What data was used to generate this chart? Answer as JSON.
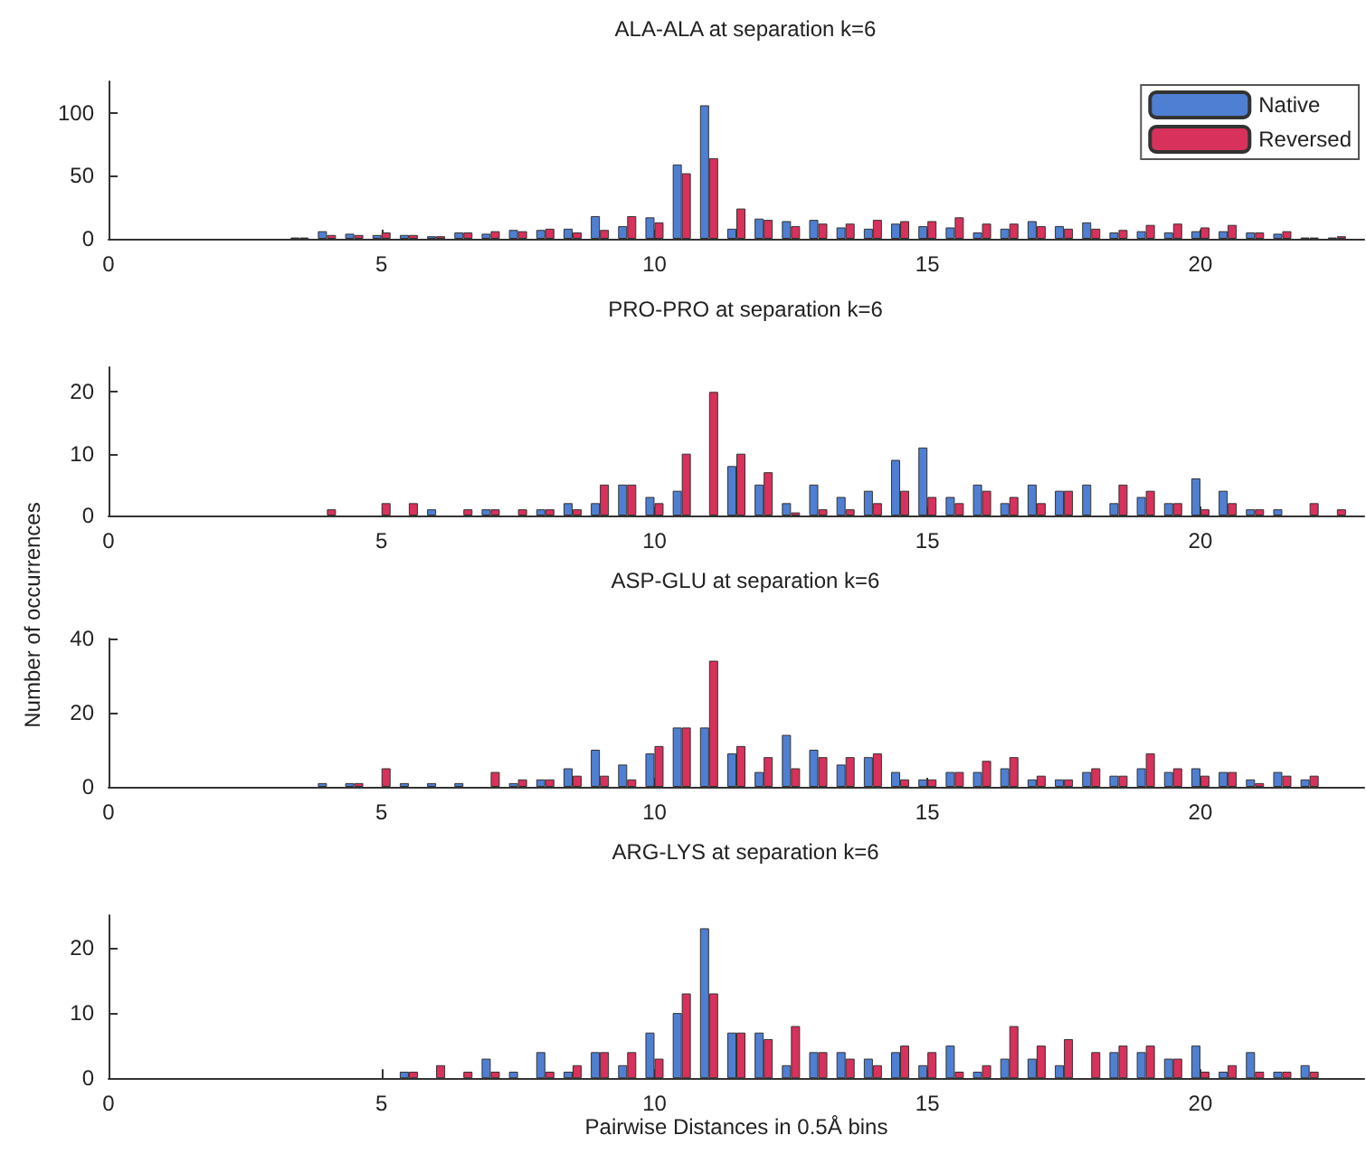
{
  "chart_data": [
    {
      "type": "bar",
      "title": "ALA-ALA at separation k=6",
      "x": [
        3.5,
        4,
        4.5,
        5,
        5.5,
        6,
        6.5,
        7,
        7.5,
        8,
        8.5,
        9,
        9.5,
        10,
        10.5,
        11,
        11.5,
        12,
        12.5,
        13,
        13.5,
        14,
        14.5,
        15,
        15.5,
        16,
        16.5,
        17,
        17.5,
        18,
        18.5,
        19,
        19.5,
        20,
        20.5,
        21,
        21.5,
        22,
        22.5
      ],
      "xlim": [
        0,
        23
      ],
      "xticks": [
        0,
        5,
        10,
        15,
        20
      ],
      "ylim": [
        0,
        125
      ],
      "yticks": [
        0,
        50,
        100
      ],
      "legend": "top right",
      "series": [
        {
          "name": "Native",
          "color": "#4f7fd2",
          "values": [
            1,
            6,
            4,
            3,
            3,
            2,
            5,
            4,
            7,
            7,
            8,
            18,
            10,
            17,
            59,
            106,
            8,
            16,
            14,
            15,
            9,
            8,
            12,
            10,
            9,
            5,
            8,
            14,
            10,
            13,
            5,
            6,
            5,
            6,
            6,
            5,
            4,
            1,
            1
          ]
        },
        {
          "name": "Reversed",
          "color": "#d8315b",
          "values": [
            1,
            3,
            3,
            5,
            3,
            2,
            5,
            6,
            6,
            8,
            5,
            7,
            18,
            13,
            52,
            64,
            24,
            15,
            10,
            12,
            12,
            15,
            14,
            14,
            17,
            12,
            12,
            10,
            8,
            8,
            7,
            11,
            12,
            9,
            11,
            5,
            6,
            1,
            2
          ]
        }
      ]
    },
    {
      "type": "bar",
      "title": "PRO-PRO at separation k=6",
      "x": [
        3.5,
        4,
        4.5,
        5,
        5.5,
        6,
        6.5,
        7,
        7.5,
        8,
        8.5,
        9,
        9.5,
        10,
        10.5,
        11,
        11.5,
        12,
        12.5,
        13,
        13.5,
        14,
        14.5,
        15,
        15.5,
        16,
        16.5,
        17,
        17.5,
        18,
        18.5,
        19,
        19.5,
        20,
        20.5,
        21,
        21.5,
        22,
        22.5
      ],
      "xlim": [
        0,
        23
      ],
      "xticks": [
        0,
        5,
        10,
        15,
        20
      ],
      "ylim": [
        0,
        24
      ],
      "yticks": [
        0,
        10,
        20
      ],
      "ylabel": "Number of occurrences",
      "series": [
        {
          "color": "#4f7fd2",
          "values": [
            0,
            0,
            0,
            0,
            0,
            1,
            0,
            1,
            0,
            1,
            2,
            2,
            5,
            3,
            4,
            0,
            8,
            5,
            2,
            5,
            3,
            4,
            9,
            11,
            3,
            5,
            2,
            5,
            4,
            5,
            2,
            3,
            2,
            6,
            4,
            1,
            1,
            0,
            0
          ]
        },
        {
          "color": "#d8315b",
          "values": [
            0,
            1,
            0,
            2,
            2,
            0,
            1,
            1,
            1,
            1,
            1,
            5,
            5,
            2,
            10,
            20,
            10,
            7,
            0.5,
            1,
            1,
            2,
            4,
            3,
            2,
            4,
            3,
            2,
            4,
            0,
            5,
            4,
            2,
            1,
            2,
            1,
            0,
            2,
            1
          ]
        }
      ]
    },
    {
      "type": "bar",
      "title": "ASP-GLU at separation k=6",
      "x": [
        3.5,
        4,
        4.5,
        5,
        5.5,
        6,
        6.5,
        7,
        7.5,
        8,
        8.5,
        9,
        9.5,
        10,
        10.5,
        11,
        11.5,
        12,
        12.5,
        13,
        13.5,
        14,
        14.5,
        15,
        15.5,
        16,
        16.5,
        17,
        17.5,
        18,
        18.5,
        19,
        19.5,
        20,
        20.5,
        21,
        21.5,
        22,
        22.5
      ],
      "xlim": [
        0,
        23
      ],
      "xticks": [
        0,
        5,
        10,
        15,
        20
      ],
      "ylim": [
        0,
        40
      ],
      "yticks": [
        0,
        20,
        40
      ],
      "series": [
        {
          "color": "#4f7fd2",
          "values": [
            0,
            1,
            1,
            0,
            1,
            1,
            1,
            0,
            1,
            2,
            5,
            10,
            6,
            9,
            16,
            16,
            9,
            4,
            14,
            10,
            6,
            8,
            4,
            2,
            4,
            4,
            5,
            2,
            2,
            4,
            3,
            5,
            4,
            5,
            4,
            2,
            4,
            2,
            0
          ]
        },
        {
          "color": "#d8315b",
          "values": [
            0,
            0,
            1,
            5,
            0,
            0,
            0,
            4,
            2,
            2,
            3,
            3,
            2,
            11,
            16,
            34,
            11,
            8,
            5,
            8,
            8,
            9,
            2,
            2,
            4,
            7,
            8,
            3,
            2,
            5,
            3,
            9,
            5,
            3,
            4,
            1,
            3,
            3,
            0
          ]
        }
      ]
    },
    {
      "type": "bar",
      "title": "ARG-LYS at separation k=6",
      "xlabel": "Pairwise Distances in 0.5Å bins",
      "x": [
        3.5,
        4,
        4.5,
        5,
        5.5,
        6,
        6.5,
        7,
        7.5,
        8,
        8.5,
        9,
        9.5,
        10,
        10.5,
        11,
        11.5,
        12,
        12.5,
        13,
        13.5,
        14,
        14.5,
        15,
        15.5,
        16,
        16.5,
        17,
        17.5,
        18,
        18.5,
        19,
        19.5,
        20,
        20.5,
        21,
        21.5,
        22,
        22.5
      ],
      "xlim": [
        0,
        23
      ],
      "xticks": [
        0,
        5,
        10,
        15,
        20
      ],
      "ylim": [
        0,
        25
      ],
      "yticks": [
        0,
        10,
        20
      ],
      "series": [
        {
          "color": "#4f7fd2",
          "values": [
            0,
            0,
            0,
            0,
            1,
            0,
            0,
            3,
            1,
            4,
            1,
            4,
            2,
            7,
            10,
            23,
            7,
            7,
            2,
            4,
            4,
            3,
            4,
            2,
            5,
            1,
            3,
            3,
            2,
            0,
            4,
            4,
            3,
            5,
            1,
            4,
            1,
            2,
            0
          ]
        },
        {
          "color": "#d8315b",
          "values": [
            0,
            0,
            0,
            0,
            1,
            2,
            1,
            1,
            0,
            1,
            2,
            4,
            4,
            3,
            13,
            13,
            7,
            6,
            8,
            4,
            3,
            2,
            5,
            4,
            1,
            2,
            8,
            5,
            6,
            4,
            5,
            5,
            3,
            1,
            2,
            1,
            1,
            1,
            0
          ]
        }
      ]
    }
  ]
}
